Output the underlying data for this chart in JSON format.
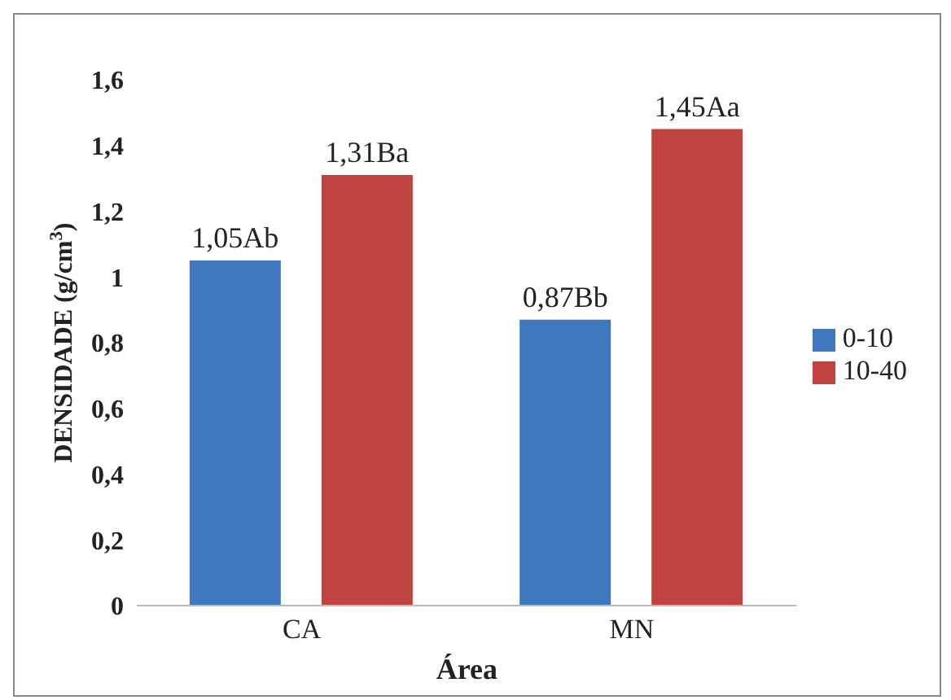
{
  "chart_data": {
    "type": "bar",
    "xlabel": "Área",
    "ylabel": "DENSIDADE (g/cm$^{3}$)",
    "categories": [
      "CA",
      "MN"
    ],
    "series": [
      {
        "name": "0-10",
        "color": "#3f78be",
        "values": [
          1.05,
          0.87
        ],
        "value_labels": [
          "1,05Ab",
          "0,87Bb"
        ]
      },
      {
        "name": "10-40",
        "color": "#c0433f",
        "values": [
          1.31,
          1.45
        ],
        "value_labels": [
          "1,31Ba",
          "1,45Aa"
        ]
      }
    ],
    "ylim": [
      0,
      1.6
    ],
    "yticks": [
      {
        "value": 0,
        "label": "0"
      },
      {
        "value": 0.2,
        "label": "0,2"
      },
      {
        "value": 0.4,
        "label": "0,4"
      },
      {
        "value": 0.6,
        "label": "0,6"
      },
      {
        "value": 0.8,
        "label": "0,8"
      },
      {
        "value": 1,
        "label": "1"
      },
      {
        "value": 1.2,
        "label": "1,2"
      },
      {
        "value": 1.4,
        "label": "1,4"
      },
      {
        "value": 1.6,
        "label": "1,6"
      }
    ],
    "grid": false,
    "legend": "right"
  }
}
